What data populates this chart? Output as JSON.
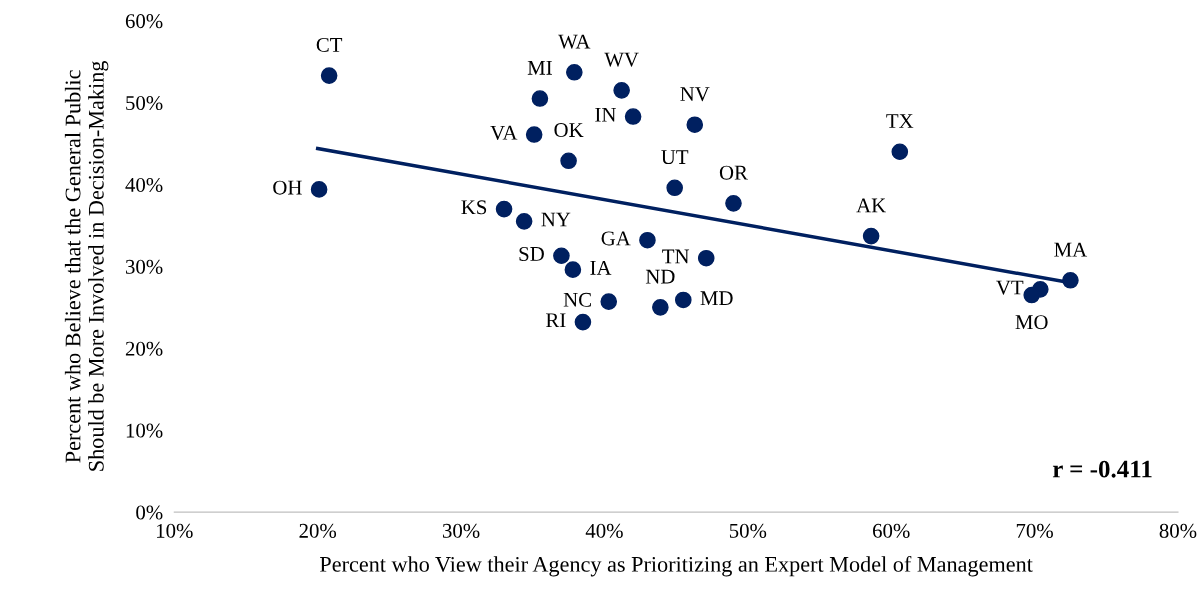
{
  "chart_data": {
    "type": "scatter",
    "xlabel": "Percent who View their Agency as Prioritizing an Expert Model of Management",
    "ylabel": "Percent who Believe that the General Public Should be More Involved in Decision-Making",
    "xlim": [
      10,
      80
    ],
    "ylim": [
      0,
      60
    ],
    "xticks": [
      {
        "value": 10,
        "label": "10%"
      },
      {
        "value": 20,
        "label": "20%"
      },
      {
        "value": 30,
        "label": "30%"
      },
      {
        "value": 40,
        "label": "40%"
      },
      {
        "value": 50,
        "label": "50%"
      },
      {
        "value": 60,
        "label": "60%"
      },
      {
        "value": 70,
        "label": "70%"
      },
      {
        "value": 80,
        "label": "80%"
      }
    ],
    "yticks": [
      {
        "value": 0,
        "label": "0%"
      },
      {
        "value": 10,
        "label": "10%"
      },
      {
        "value": 20,
        "label": "20%"
      },
      {
        "value": 30,
        "label": "30%"
      },
      {
        "value": 40,
        "label": "40%"
      },
      {
        "value": 50,
        "label": "50%"
      },
      {
        "value": 60,
        "label": "60%"
      }
    ],
    "grid": false,
    "series": [
      {
        "marker": "circle",
        "color": "#002060",
        "x": [
          20.8,
          20.1,
          37.9,
          41.2,
          35.5,
          42.0,
          46.3,
          35.1,
          37.5,
          60.6,
          44.9,
          49.0,
          33.0,
          34.4,
          58.6,
          43.0,
          37.0,
          47.1,
          37.8,
          40.3,
          43.9,
          45.5,
          38.5,
          72.5,
          70.4,
          69.8
        ],
        "values": [
          53.3,
          39.4,
          53.7,
          51.5,
          50.5,
          48.3,
          47.3,
          46.1,
          42.9,
          44.0,
          39.6,
          37.7,
          37.0,
          35.5,
          33.7,
          33.2,
          31.3,
          31.0,
          29.6,
          25.7,
          25.0,
          25.9,
          23.2,
          28.3,
          27.2,
          26.5
        ]
      },
      {
        "type": "line",
        "color": "#002060",
        "x": [
          20.0,
          72.5
        ],
        "values": [
          44.4,
          28.0
        ]
      }
    ],
    "annotations": [
      {
        "text": "CT",
        "x": 20.8,
        "y": 53.3
      },
      {
        "text": "OH",
        "x": 20.1,
        "y": 39.4
      },
      {
        "text": "WA",
        "x": 37.9,
        "y": 53.7
      },
      {
        "text": "WV",
        "x": 41.2,
        "y": 51.5
      },
      {
        "text": "MI",
        "x": 35.5,
        "y": 50.5
      },
      {
        "text": "IN",
        "x": 42.0,
        "y": 48.3
      },
      {
        "text": "NV",
        "x": 46.3,
        "y": 47.3
      },
      {
        "text": "VA",
        "x": 35.1,
        "y": 46.1
      },
      {
        "text": "OK",
        "x": 37.5,
        "y": 42.9
      },
      {
        "text": "TX",
        "x": 60.6,
        "y": 44.0
      },
      {
        "text": "UT",
        "x": 44.9,
        "y": 39.6
      },
      {
        "text": "OR",
        "x": 49.0,
        "y": 37.7
      },
      {
        "text": "KS",
        "x": 33.0,
        "y": 37.0
      },
      {
        "text": "NY",
        "x": 34.4,
        "y": 35.5
      },
      {
        "text": "AK",
        "x": 58.6,
        "y": 33.7
      },
      {
        "text": "GA",
        "x": 43.0,
        "y": 33.2
      },
      {
        "text": "SD",
        "x": 37.0,
        "y": 31.3
      },
      {
        "text": "TN",
        "x": 47.1,
        "y": 31.0
      },
      {
        "text": "IA",
        "x": 37.8,
        "y": 29.6
      },
      {
        "text": "NC",
        "x": 40.3,
        "y": 25.7
      },
      {
        "text": "ND",
        "x": 43.9,
        "y": 25.0
      },
      {
        "text": "MD",
        "x": 45.5,
        "y": 25.9
      },
      {
        "text": "RI",
        "x": 38.5,
        "y": 23.2
      },
      {
        "text": "MA",
        "x": 72.5,
        "y": 28.3
      },
      {
        "text": "VT",
        "x": 70.4,
        "y": 27.2
      },
      {
        "text": "MO",
        "x": 69.8,
        "y": 26.5
      },
      "r = -0.411"
    ]
  }
}
